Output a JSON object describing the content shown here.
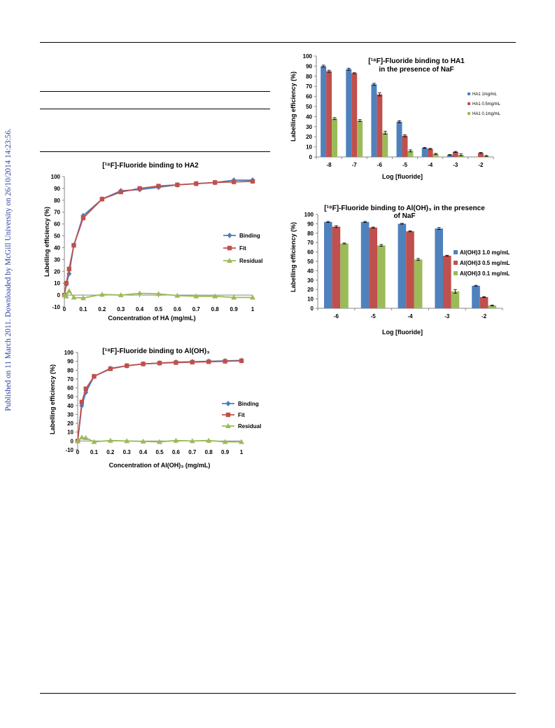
{
  "page": {
    "side_note": "Published on 11 March 2011. Downloaded by McGill University on 26/10/2014 14:23:56."
  },
  "chart_data": [
    {
      "id": "ha2",
      "type": "line",
      "title": "[¹⁸F]-Fluoride binding to HA2",
      "xlabel": "Concentration of HA (mg/mL)",
      "ylabel": "Labelling efficiency (%)",
      "xlim": [
        0,
        1
      ],
      "ylim": [
        -10,
        100
      ],
      "xticks": [
        0,
        0.1,
        0.2,
        0.3,
        0.4,
        0.5,
        0.6,
        0.7,
        0.8,
        0.9,
        1
      ],
      "xtick_labels": [
        "0",
        "0.1",
        "0.2",
        "0.3",
        "0.4",
        "0.5",
        "0.6",
        "0.7",
        "0.8",
        "0.9",
        "1"
      ],
      "yticks": [
        -10,
        0,
        10,
        20,
        30,
        40,
        50,
        60,
        70,
        80,
        90,
        100
      ],
      "grid": false,
      "legend_position": "right",
      "series": [
        {
          "name": "Binding",
          "color": "#4a7ebb",
          "marker": "diamond",
          "x": [
            0,
            0.01,
            0.025,
            0.05,
            0.1,
            0.2,
            0.3,
            0.4,
            0.5,
            0.6,
            0.7,
            0.8,
            0.9,
            1
          ],
          "y": [
            0,
            9,
            18,
            42,
            67,
            81,
            88,
            89,
            91,
            93,
            94,
            95,
            97,
            97
          ]
        },
        {
          "name": "Fit",
          "color": "#c0504d",
          "marker": "square",
          "x": [
            0,
            0.01,
            0.025,
            0.05,
            0.1,
            0.2,
            0.3,
            0.4,
            0.5,
            0.6,
            0.7,
            0.8,
            0.9,
            1
          ],
          "y": [
            0,
            10,
            22,
            42,
            65,
            81,
            87,
            90,
            92,
            93,
            94,
            95,
            95.5,
            96
          ]
        },
        {
          "name": "Residual",
          "color": "#9bbb59",
          "marker": "triangle",
          "x": [
            0,
            0.01,
            0.025,
            0.05,
            0.1,
            0.2,
            0.3,
            0.4,
            0.5,
            0.6,
            0.7,
            0.8,
            0.9,
            1
          ],
          "y": [
            0,
            -1,
            3.5,
            -2,
            -2.5,
            0.5,
            0,
            1.5,
            1,
            -0.5,
            -1,
            -1,
            -2,
            -2
          ]
        }
      ]
    },
    {
      "id": "aloh3",
      "type": "line",
      "title": "[¹⁸F]-Fluoride binding to Al(OH)₃",
      "xlabel": "Concentration of Al(OH)₃ (mg/mL)",
      "ylabel": "Labelling efficiency (%)",
      "xlim": [
        0,
        1
      ],
      "ylim": [
        -10,
        100
      ],
      "xticks": [
        0,
        0.1,
        0.2,
        0.3,
        0.4,
        0.5,
        0.6,
        0.7,
        0.8,
        0.9,
        1
      ],
      "xtick_labels": [
        "0",
        "0.1",
        "0.2",
        "0.3",
        "0.4",
        "0.5",
        "0.6",
        "0.7",
        "0.8",
        "0.9",
        "1"
      ],
      "yticks": [
        -10,
        0,
        10,
        20,
        30,
        40,
        50,
        60,
        70,
        80,
        90,
        100
      ],
      "grid": false,
      "legend_position": "right",
      "series": [
        {
          "name": "Binding",
          "color": "#4a7ebb",
          "marker": "diamond",
          "x": [
            0,
            0.025,
            0.05,
            0.1,
            0.2,
            0.3,
            0.4,
            0.5,
            0.6,
            0.7,
            0.8,
            0.9,
            1
          ],
          "y": [
            0,
            40,
            55,
            73,
            82,
            85,
            87,
            88,
            89,
            89.5,
            90,
            90.5,
            91
          ]
        },
        {
          "name": "Fit",
          "color": "#c0504d",
          "marker": "square",
          "x": [
            0,
            0.025,
            0.05,
            0.1,
            0.2,
            0.3,
            0.4,
            0.5,
            0.6,
            0.7,
            0.8,
            0.9,
            1
          ],
          "y": [
            0,
            44,
            59,
            73,
            81.5,
            85,
            87,
            88,
            88.5,
            89,
            89.5,
            90,
            90.5
          ]
        },
        {
          "name": "Residual",
          "color": "#9bbb59",
          "marker": "triangle",
          "x": [
            0,
            0.025,
            0.05,
            0.1,
            0.2,
            0.3,
            0.4,
            0.5,
            0.6,
            0.7,
            0.8,
            0.9,
            1
          ],
          "y": [
            0,
            4,
            3.5,
            -1,
            0.5,
            0,
            -0.5,
            -1,
            0.5,
            0,
            0.5,
            -1,
            -1
          ]
        }
      ]
    },
    {
      "id": "ha1",
      "type": "bar",
      "title": "[¹⁸F]-Fluoride binding to HA1",
      "subtitle": "in the presence of NaF",
      "xlabel": "Log [fluoride]",
      "ylabel": "Labelling efficiency (%)",
      "ylim": [
        0,
        100
      ],
      "yticks": [
        0,
        10,
        20,
        30,
        40,
        50,
        60,
        70,
        80,
        90,
        100
      ],
      "categories": [
        "-8",
        "-7",
        "-6",
        "-5",
        "-4",
        "-3",
        "-2"
      ],
      "grid": false,
      "legend_position": "right",
      "series": [
        {
          "name": "HA1 1mg/mL",
          "color": "#4f81bd",
          "values": [
            90,
            87,
            72,
            35,
            9,
            2,
            0
          ],
          "errors": [
            1,
            1,
            1,
            1,
            0.5,
            0.5,
            0
          ]
        },
        {
          "name": "HA1 0.5mg/mL",
          "color": "#c0504d",
          "values": [
            85,
            83,
            62,
            21,
            8,
            5,
            4
          ],
          "errors": [
            1,
            0.5,
            1.5,
            1,
            0.5,
            0.5,
            0.5
          ]
        },
        {
          "name": "HA1 0.1mg/mL",
          "color": "#9bbb59",
          "values": [
            38,
            36,
            24,
            6,
            3,
            2,
            1
          ],
          "errors": [
            1,
            1,
            1.5,
            1,
            0.5,
            1,
            0.5
          ]
        }
      ]
    },
    {
      "id": "aloh3-naf",
      "type": "bar",
      "title": "[¹⁸F]-Fluoride binding to Al(OH)₃ in the presence",
      "subtitle": "of NaF",
      "xlabel": "Log [fluoride]",
      "ylabel": "Labelling efficiency (%)",
      "ylim": [
        0,
        100
      ],
      "yticks": [
        0,
        10,
        20,
        30,
        40,
        50,
        60,
        70,
        80,
        90,
        100
      ],
      "categories": [
        "-6",
        "-5",
        "-4",
        "-3",
        "-2"
      ],
      "grid": false,
      "legend_position": "right",
      "series": [
        {
          "name": "Al(OH)3 1.0 mg/mL",
          "color": "#4f81bd",
          "values": [
            92,
            92,
            90,
            85,
            24
          ],
          "errors": [
            0.5,
            0.5,
            0.5,
            1,
            0.5
          ]
        },
        {
          "name": "Al(OH)3 0.5 mg/mL",
          "color": "#c0504d",
          "values": [
            87,
            86,
            82,
            56,
            12
          ],
          "errors": [
            1,
            0.5,
            0.5,
            0.5,
            0.5
          ]
        },
        {
          "name": "Al(OH)3 0.1 mg/mL",
          "color": "#9bbb59",
          "values": [
            69,
            67,
            52,
            18,
            3
          ],
          "errors": [
            0.5,
            1,
            1,
            2,
            0.5
          ]
        }
      ]
    }
  ]
}
